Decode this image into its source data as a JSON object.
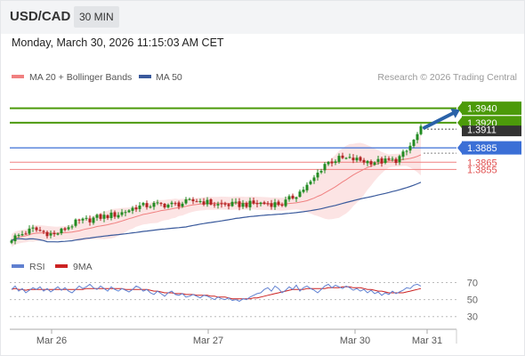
{
  "header": {
    "symbol": "USD/CAD",
    "timeframe": "30 MIN",
    "datetime": "Monday, March 30, 2026 11:15:03 AM CET"
  },
  "watermark": "Research © 2026 Trading Central",
  "colors": {
    "candle_up": "#228b22",
    "candle_down": "#b22222",
    "ma20": "#f08080",
    "bollinger_fill": "#fce4e4",
    "ma50": "#3a5a9c",
    "resistance": "#4c9a0a",
    "pivot": "#3b6fd6",
    "support": "#f08080",
    "arrow": "#2a62a8",
    "rsi": "#6080d0",
    "rsi_ma": "#cc2222",
    "last_price_bg": "#333333"
  },
  "chart_data": [
    {
      "type": "candlestick",
      "legend": [
        {
          "label": "MA 20 + Bollinger Bands",
          "color": "#f08080"
        },
        {
          "label": "MA 50",
          "color": "#3a5a9c"
        }
      ],
      "ylim": [
        1.3738,
        1.3968
      ],
      "x_labels": [
        "Mar 26",
        "Mar 27",
        "Mar 30",
        "Mar 31"
      ],
      "candle_count": 116,
      "price_path": [
        [
          0,
          1.3759
        ],
        [
          6,
          1.3772
        ],
        [
          12,
          1.3764
        ],
        [
          18,
          1.3781
        ],
        [
          24,
          1.3788
        ],
        [
          30,
          1.3793
        ],
        [
          35,
          1.3803
        ],
        [
          40,
          1.3806
        ],
        [
          46,
          1.3806
        ],
        [
          52,
          1.3812
        ],
        [
          58,
          1.3806
        ],
        [
          64,
          1.3806
        ],
        [
          70,
          1.3808
        ],
        [
          76,
          1.3807
        ],
        [
          80,
          1.382
        ],
        [
          84,
          1.3836
        ],
        [
          88,
          1.3863
        ],
        [
          92,
          1.387
        ],
        [
          96,
          1.3869
        ],
        [
          100,
          1.3866
        ],
        [
          104,
          1.3866
        ],
        [
          108,
          1.3868
        ],
        [
          111,
          1.388
        ],
        [
          113,
          1.3895
        ],
        [
          115,
          1.3911
        ]
      ],
      "levels": [
        {
          "value": 1.394,
          "label": "1.3940",
          "kind": "resistance"
        },
        {
          "value": 1.392,
          "label": "1.3920",
          "kind": "resistance"
        },
        {
          "value": 1.3911,
          "label": "1.3911",
          "kind": "last"
        },
        {
          "value": 1.3885,
          "label": "1.3885",
          "kind": "pivot"
        },
        {
          "value": 1.3865,
          "label": "1.3865",
          "kind": "support"
        },
        {
          "value": 1.3855,
          "label": "1.3855",
          "kind": "support"
        }
      ],
      "arrow": {
        "from": [
          116,
          1.3913
        ],
        "to": [
          126,
          1.3938
        ],
        "direction": "up"
      }
    },
    {
      "type": "line",
      "legend": [
        {
          "label": "RSI",
          "color": "#6080d0"
        },
        {
          "label": "9MA",
          "color": "#cc2222"
        }
      ],
      "ylim": [
        15,
        80
      ],
      "y_ticks": [
        70,
        50,
        30
      ],
      "rsi_values": [
        62,
        66,
        60,
        63,
        58,
        61,
        64,
        62,
        65,
        60,
        63,
        59,
        62,
        65,
        61,
        64,
        60,
        58,
        62,
        66,
        63,
        65,
        68,
        64,
        62,
        66,
        63,
        60,
        65,
        62,
        60,
        63,
        61,
        59,
        62,
        66,
        64,
        60,
        62,
        58,
        56,
        60,
        57,
        54,
        58,
        60,
        56,
        55,
        57,
        53,
        54,
        56,
        54,
        52,
        55,
        54,
        52,
        50,
        53,
        51,
        50,
        52,
        49,
        50,
        48,
        51,
        50,
        53,
        55,
        57,
        58,
        62,
        64,
        60,
        66,
        63,
        58,
        61,
        65,
        62,
        67,
        60,
        64,
        66,
        63,
        61,
        58,
        62,
        66,
        68,
        64,
        67,
        65,
        63,
        66,
        64,
        61,
        63,
        60,
        62,
        58,
        61,
        57,
        59,
        55,
        58,
        56,
        60,
        57,
        59,
        61,
        64,
        63,
        67,
        68,
        66
      ],
      "ma9_values": [
        62,
        63,
        62,
        62,
        61,
        62,
        62,
        62,
        62,
        62,
        62,
        62,
        62,
        62,
        62,
        62,
        62,
        62,
        62,
        62,
        62,
        63,
        63,
        63,
        63,
        63,
        63,
        63,
        63,
        63,
        63,
        63,
        62,
        62,
        62,
        62,
        62,
        62,
        62,
        61,
        60,
        60,
        59,
        58,
        58,
        58,
        57,
        57,
        57,
        56,
        56,
        56,
        55,
        55,
        55,
        55,
        54,
        54,
        53,
        53,
        53,
        52,
        51,
        51,
        51,
        51,
        51,
        51,
        52,
        52,
        53,
        54,
        55,
        56,
        57,
        58,
        59,
        60,
        61,
        62,
        62,
        62,
        62,
        63,
        63,
        63,
        63,
        63,
        63,
        64,
        64,
        64,
        64,
        65,
        65,
        65,
        64,
        64,
        64,
        63,
        62,
        62,
        61,
        60,
        60,
        59,
        58,
        58,
        58,
        58,
        58,
        59,
        60,
        61,
        62,
        63
      ]
    }
  ]
}
